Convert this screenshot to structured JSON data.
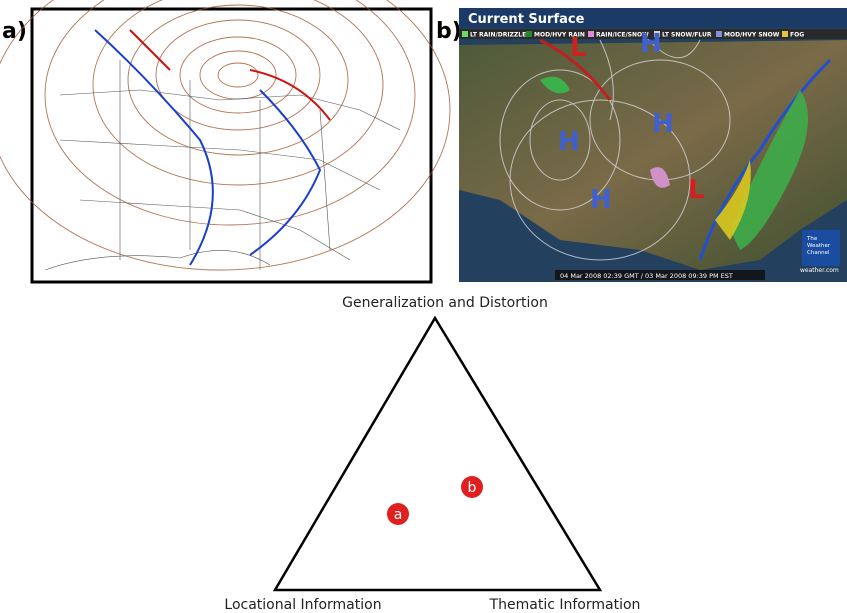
{
  "panel_a": {
    "label": "a)"
  },
  "panel_b": {
    "label": "b)",
    "title": "Current Surface",
    "legend": [
      "LT RAIN/DRIZZLE",
      "MOD/HVY RAIN",
      "RAIN/ICE/SNOW",
      "LT SNOW/FLUR",
      "MOD/HVY SNOW",
      "FOG"
    ],
    "systems": [
      "L",
      "H",
      "H",
      "H",
      "H",
      "L"
    ],
    "timestamp": "04 Mar 2008 02:39 GMT / 03 Mar 2008 09:39 PM EST",
    "logo": [
      "The",
      "Weather",
      "Channel"
    ],
    "site": "weather.com"
  },
  "triangle": {
    "top_label": "Generalization and Distortion",
    "left_label": "Locational Information",
    "right_label": "Thematic Information",
    "points": [
      "a",
      "b"
    ]
  }
}
